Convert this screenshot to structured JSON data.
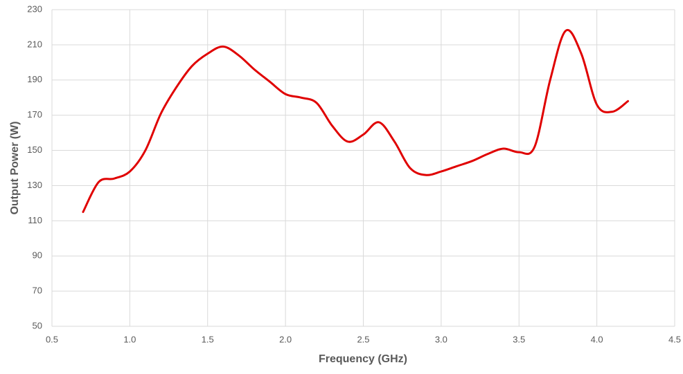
{
  "chart_data": {
    "type": "line",
    "x_label": "Frequency (GHz)",
    "y_label": "Output Power (W)",
    "x": [
      0.7,
      0.8,
      0.9,
      1.0,
      1.1,
      1.2,
      1.3,
      1.4,
      1.5,
      1.6,
      1.7,
      1.8,
      1.9,
      2.0,
      2.1,
      2.2,
      2.3,
      2.4,
      2.5,
      2.6,
      2.7,
      2.8,
      2.9,
      3.0,
      3.1,
      3.2,
      3.3,
      3.4,
      3.5,
      3.6,
      3.7,
      3.8,
      3.9,
      4.0,
      4.1,
      4.2
    ],
    "series": [
      {
        "color": "#e00000",
        "values": [
          115,
          132,
          134,
          138,
          150,
          171,
          186,
          198,
          205,
          209,
          204,
          196,
          189,
          182,
          180,
          177,
          164,
          155,
          159,
          166,
          155,
          140,
          136,
          138,
          141,
          144,
          148,
          151,
          149,
          152,
          190,
          218,
          205,
          176,
          172,
          178
        ]
      }
    ],
    "xlim": [
      0.5,
      4.5
    ],
    "xticks": [
      0.5,
      {
        "value": 1,
        "label": "1.0"
      },
      1.5,
      {
        "value": 2,
        "label": "2.0"
      },
      2.5,
      {
        "value": 3,
        "label": "3.0"
      },
      3.5,
      {
        "value": 4,
        "label": "4.0"
      },
      4.5
    ],
    "ylim": [
      50,
      230
    ],
    "yticks": [
      50,
      70,
      90,
      110,
      130,
      150,
      170,
      190,
      210,
      230
    ],
    "grid": true
  }
}
